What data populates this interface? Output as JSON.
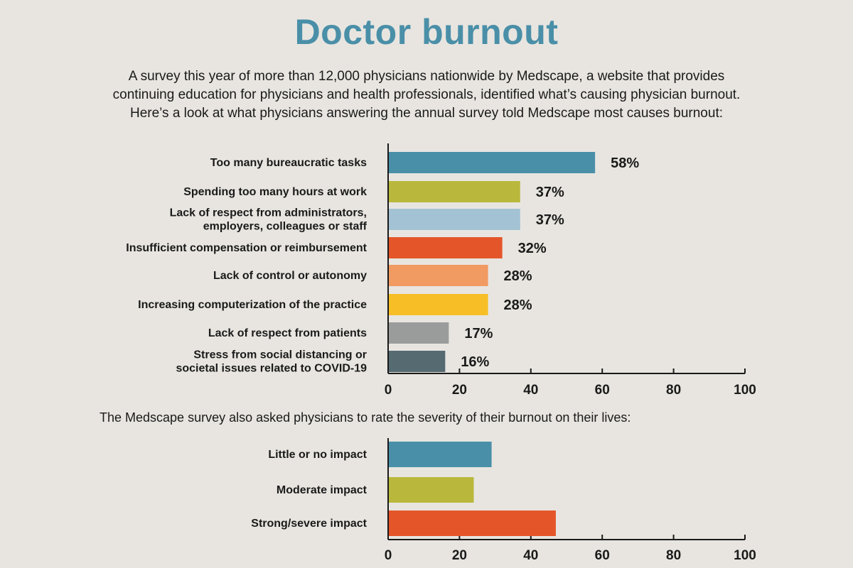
{
  "title": "Doctor burnout",
  "intro": [
    "A survey this year of more than 12,000 physicians nationwide by Medscape, a website that provides",
    "continuing education for physicians and health professionals, identified what’s causing physician burnout.",
    "Here’s a look at what physicians answering the annual survey told Medscape most causes burnout:"
  ],
  "second_intro": "The Medscape survey also asked physicians to rate the severity of their burnout on their lives:",
  "chart_data": [
    {
      "type": "bar",
      "orientation": "horizontal",
      "categories": [
        [
          "Too many bureaucratic tasks"
        ],
        [
          "Spending too many hours at work"
        ],
        [
          "Lack of respect from administrators,",
          "employers, colleagues or staff"
        ],
        [
          "Insufficient compensation or reimbursement"
        ],
        [
          "Lack of control or autonomy"
        ],
        [
          "Increasing computerization of the practice"
        ],
        [
          "Lack of respect from patients"
        ],
        [
          "Stress from social distancing or",
          "societal issues related to COVID-19"
        ]
      ],
      "values": [
        58,
        37,
        37,
        32,
        28,
        28,
        17,
        16
      ],
      "value_labels": [
        "58%",
        "37%",
        "37%",
        "32%",
        "28%",
        "28%",
        "17%",
        "16%"
      ],
      "colors": [
        "#4a8fa8",
        "#b9b83c",
        "#a3c2d3",
        "#e4562a",
        "#f19a62",
        "#f7bf25",
        "#9a9c9b",
        "#566a72"
      ],
      "xlim": [
        0,
        100
      ],
      "xticks": [
        "0",
        "20",
        "40",
        "60",
        "80",
        "100"
      ],
      "grid": false
    },
    {
      "type": "bar",
      "orientation": "horizontal",
      "categories": [
        [
          "Little or no impact"
        ],
        [
          "Moderate impact"
        ],
        [
          "Strong/severe impact"
        ]
      ],
      "values": [
        29,
        24,
        47
      ],
      "colors": [
        "#4a8fa8",
        "#b9b83c",
        "#e4562a"
      ],
      "xlim": [
        0,
        100
      ],
      "xticks": [
        "0",
        "20",
        "40",
        "60",
        "80",
        "100"
      ],
      "grid": false
    }
  ]
}
